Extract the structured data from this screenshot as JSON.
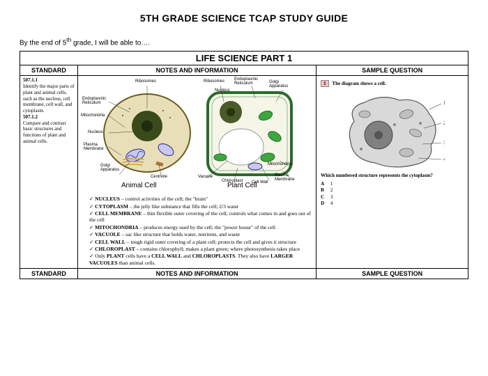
{
  "title": "5TH GRADE SCIENCE TCAP STUDY GUIDE",
  "intro_prefix": "By the end of 5",
  "intro_sup": "th",
  "intro_suffix": " grade, I will be able to….",
  "section_heading": "LIFE SCIENCE PART 1",
  "col_headers": {
    "standard": "STANDARD",
    "notes": "NOTES AND INFORMATION",
    "sample": "SAMPLE QUESTION"
  },
  "standards": {
    "s1_code": "507.1.1",
    "s1_text": "Identify the major parts of plant and animal cells, such as the nucleus, cell membrane, cell wall, and cytoplasm.",
    "s2_code": "507.1.2",
    "s2_text": "Compare and contrast basic structures and functions of plant and animal cells."
  },
  "diagram": {
    "animal_title": "Animal Cell",
    "plant_title": "Plant Cell",
    "labels": {
      "ribosomes": "Ribosomes",
      "ribosomes2": "Ribosomes",
      "endoplasmic1": "Endoplasmic\nReticulum",
      "endoplasmic2": "Endoplasmic\nReticulum",
      "golgi2": "Golgi\nApparatus",
      "nucleus_p": "Nucleus",
      "mitochondria1": "Mitochondria",
      "nucleus_a": "Nucleus",
      "plasma1": "Plasma\nMembrane",
      "golgi1": "Golgi\nApparatus",
      "centriole": "Centriole",
      "vacuole": "Vacuole",
      "chloroplast": "Chloroplast",
      "mitochondria2": "Mitochondria",
      "plasma2": "Plasma\nMembrane",
      "cellwall": "Cell Wall"
    },
    "colors": {
      "animal_fill": "#e8dfb8",
      "animal_stroke": "#6a5c1f",
      "nucleus_fill": "#3a4a1a",
      "mito_stroke": "#2a2a80",
      "mito_fill": "#c8c8f0",
      "plant_wall": "#2a6b2a",
      "plant_fill": "#f5f5e8",
      "chloro_fill": "#3fa63f",
      "vacuole_fill": "#ffffff",
      "label_line": "#333333"
    }
  },
  "bullets": [
    {
      "term": "NUCLEUS",
      "rest": " – control activities of the cell; the \"brain\""
    },
    {
      "term": "CYTOPLASM",
      "rest": " – the jelly like substance that fills the cell; 2/3 water"
    },
    {
      "term": "CELL MEMBRANE",
      "rest": " – thin flexible outer covering of the cell; controls what comes in and goes out of the cell"
    },
    {
      "term": "MITOCHONDRIA",
      "rest": " – produces energy used by the cell; the \"power house\" of the cell"
    },
    {
      "term": "VACUOLE",
      "rest": " – sac like structure that holds water, nutrients, and waste"
    },
    {
      "term": "CELL WALL",
      "rest": " – tough rigid outer covering of a plant cell; protects the cell and gives it structure"
    },
    {
      "term": "CHLOROPLAST",
      "rest": " – contains chlorophyll; makes a plant green; where photosynthesis takes place"
    },
    {
      "term": "",
      "rest": "Only PLANT cells have a CELL WALL and CHLOROPLASTS.  They also have LARGER VACUOLES than animal cells."
    }
  ],
  "sample": {
    "qnum": "1",
    "prompt": "The diagram shows a cell.",
    "question": "Which numbered structure represents the cytoplasm?",
    "options": [
      {
        "letter": "A",
        "val": "1"
      },
      {
        "letter": "B",
        "val": "2"
      },
      {
        "letter": "C",
        "val": "3"
      },
      {
        "letter": "D",
        "val": "4"
      }
    ],
    "fig": {
      "cell_fill": "#d9d9d9",
      "cell_stroke": "#555555",
      "nucleus_fill": "#808080",
      "organelle_fill": "#bfbfbf"
    }
  }
}
